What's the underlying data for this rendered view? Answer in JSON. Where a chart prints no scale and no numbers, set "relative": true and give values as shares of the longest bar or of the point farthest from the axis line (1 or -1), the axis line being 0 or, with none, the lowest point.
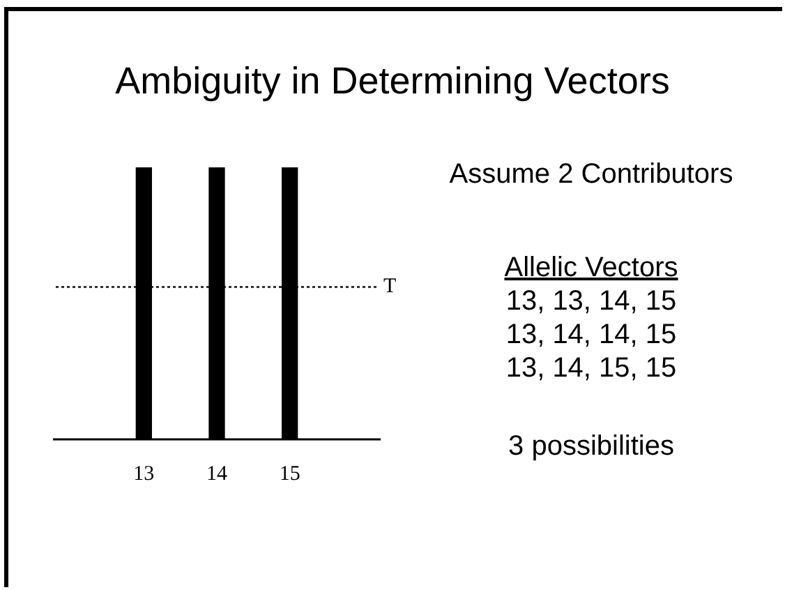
{
  "chart_data": {
    "type": "bar",
    "title": "Ambiguity in Determining Vectors",
    "categories": [
      "13",
      "14",
      "15"
    ],
    "values": [
      1,
      1,
      1
    ],
    "color": "#000000",
    "relative": true,
    "ref_lines": [
      {
        "axis": "y",
        "value": 0.56,
        "label": "T",
        "line_style": "dotted",
        "color": "#333333"
      }
    ],
    "annotations": [
      "Assume 2 Contributors",
      "Allelic Vectors",
      "13, 13, 14, 15",
      "13, 14, 14, 15",
      "13, 14, 15, 15",
      "3 possibilities"
    ],
    "grid": false,
    "legend": false
  }
}
